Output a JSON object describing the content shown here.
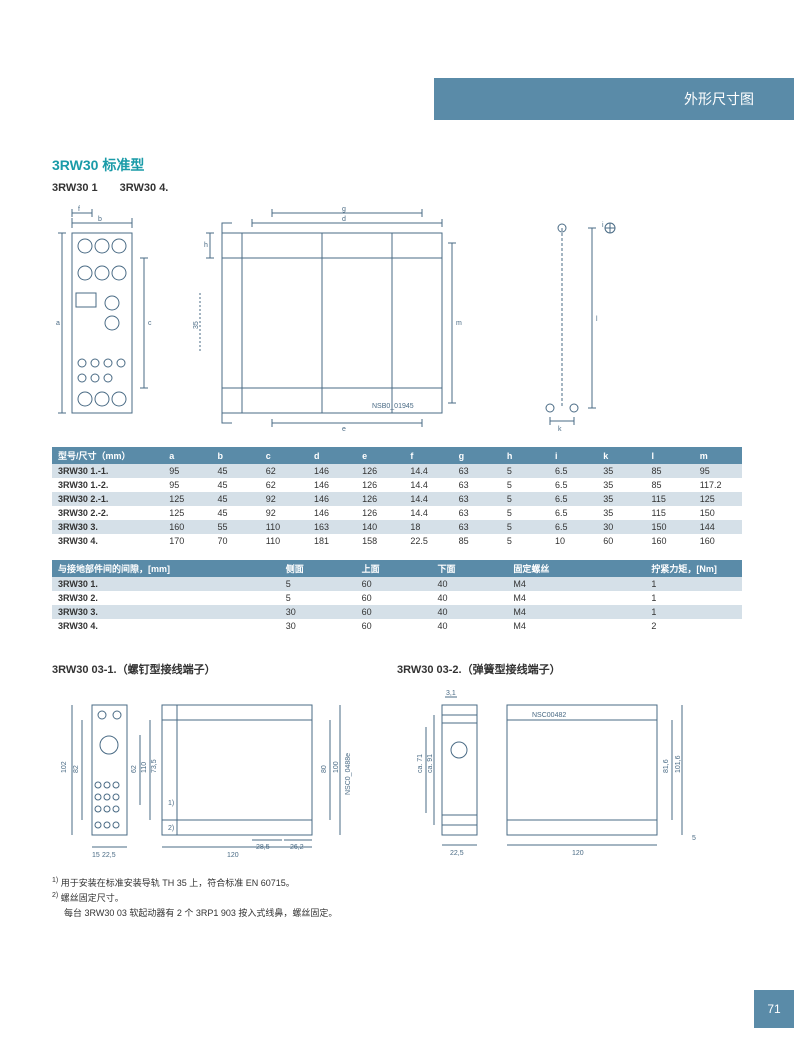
{
  "header": {
    "title": "外形尺寸图"
  },
  "section1": {
    "title": "3RW30 标准型",
    "subtitle": "3RW30 1　　3RW30 4."
  },
  "table1": {
    "headers": [
      "型号/尺寸（mm）",
      "a",
      "b",
      "c",
      "d",
      "e",
      "f",
      "g",
      "h",
      "i",
      "k",
      "l",
      "m"
    ],
    "rows": [
      [
        "3RW30 1.-1.",
        "95",
        "45",
        "62",
        "146",
        "126",
        "14.4",
        "63",
        "5",
        "6.5",
        "35",
        "85",
        "95"
      ],
      [
        "3RW30 1.-2.",
        "95",
        "45",
        "62",
        "146",
        "126",
        "14.4",
        "63",
        "5",
        "6.5",
        "35",
        "85",
        "117.2"
      ],
      [
        "3RW30 2.-1.",
        "125",
        "45",
        "92",
        "146",
        "126",
        "14.4",
        "63",
        "5",
        "6.5",
        "35",
        "115",
        "125"
      ],
      [
        "3RW30 2.-2.",
        "125",
        "45",
        "92",
        "146",
        "126",
        "14.4",
        "63",
        "5",
        "6.5",
        "35",
        "115",
        "150"
      ],
      [
        "3RW30 3.",
        "160",
        "55",
        "110",
        "163",
        "140",
        "18",
        "63",
        "5",
        "6.5",
        "30",
        "150",
        "144"
      ],
      [
        "3RW30 4.",
        "170",
        "70",
        "110",
        "181",
        "158",
        "22.5",
        "85",
        "5",
        "10",
        "60",
        "160",
        "160"
      ]
    ],
    "header_bg": "#5a8ba8",
    "alt_bg": "#d5e0e8"
  },
  "table2": {
    "headers": [
      "与接地部件间的间隙，[mm]",
      "侧面",
      "上面",
      "下面",
      "固定螺丝",
      "拧紧力矩，[Nm]"
    ],
    "rows": [
      [
        "3RW30 1.",
        "5",
        "60",
        "40",
        "M4",
        "1"
      ],
      [
        "3RW30 2.",
        "5",
        "60",
        "40",
        "M4",
        "1"
      ],
      [
        "3RW30 3.",
        "30",
        "60",
        "40",
        "M4",
        "1"
      ],
      [
        "3RW30 4.",
        "30",
        "60",
        "40",
        "M4",
        "2"
      ]
    ]
  },
  "section2": {
    "left_title": "3RW30 03-1.（螺钉型接线端子）",
    "right_title": "3RW30 03-2.（弹簧型接线端子）"
  },
  "diagrams": {
    "dims_left": {
      "b": "b",
      "f": "f",
      "a": "a",
      "c": "c",
      "h35": "35"
    },
    "dims_mid": {
      "h": "h",
      "d": "d",
      "g": "g",
      "e": "e",
      "m": "m",
      "nsb": "NSB0_01945"
    },
    "dims_right": {
      "i": "i",
      "l": "l",
      "k": "k"
    },
    "bottom_left": {
      "d102": "102",
      "d82": "82",
      "d62": "62",
      "d110": "110",
      "d735": "73,5",
      "d1": "1)",
      "d2": "2)",
      "d15": "15",
      "d225": "22,5",
      "d120": "120",
      "d285": "28,5",
      "d262": "26,2",
      "d80": "80",
      "d100": "100",
      "nsc": "NSC0_0488e"
    },
    "bottom_right": {
      "d31": "3,1",
      "nsc": "NSC00482",
      "ca71": "ca. 71",
      "ca91": "ca. 91",
      "d225": "22,5",
      "d120": "120",
      "d816": "81,6",
      "d1016": "101,6",
      "d5": "5"
    }
  },
  "footnotes": {
    "n1": "用于安装在标准安装导轨 TH 35 上，符合标准 EN 60715。",
    "n2": "螺丝固定尺寸。",
    "n3": "每台 3RW30 03 软起动器有 2 个 3RP1 903 按入式线鼻，螺丝固定。"
  },
  "pagenum": "71",
  "colors": {
    "brand": "#5a8ba8",
    "accent": "#1a9ba8",
    "line": "#4a6b85"
  }
}
